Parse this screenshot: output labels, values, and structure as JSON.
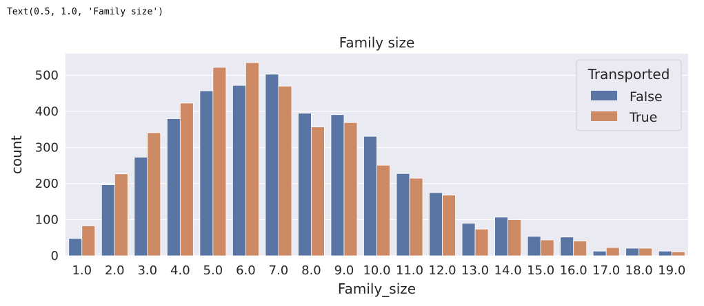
{
  "cell_output": "Text(0.5, 1.0, 'Family size')",
  "colors": {
    "background": "#eaeaf2",
    "grid": "#ffffff",
    "false_series": "#5975a4",
    "true_series": "#cc8963",
    "text": "#262626"
  },
  "chart_data": {
    "type": "bar",
    "title": "Family size",
    "xlabel": "Family_size",
    "ylabel": "count",
    "categories": [
      "1.0",
      "2.0",
      "3.0",
      "4.0",
      "5.0",
      "6.0",
      "7.0",
      "8.0",
      "9.0",
      "10.0",
      "11.0",
      "12.0",
      "13.0",
      "14.0",
      "15.0",
      "16.0",
      "17.0",
      "18.0",
      "19.0"
    ],
    "series": [
      {
        "name": "False",
        "color": "#5975a4",
        "values": [
          48,
          197,
          273,
          380,
          457,
          472,
          503,
          395,
          391,
          331,
          228,
          175,
          90,
          107,
          54,
          52,
          13,
          21,
          13
        ]
      },
      {
        "name": "True",
        "color": "#cc8963",
        "values": [
          83,
          227,
          341,
          423,
          522,
          535,
          470,
          357,
          369,
          251,
          215,
          168,
          74,
          100,
          44,
          41,
          23,
          21,
          11
        ]
      }
    ],
    "yticks": [
      0,
      100,
      200,
      300,
      400,
      500
    ],
    "ylim": [
      0,
      560
    ],
    "grid": true,
    "legend": {
      "title": "Transported",
      "placement": "top-right",
      "entries": [
        "False",
        "True"
      ]
    }
  }
}
